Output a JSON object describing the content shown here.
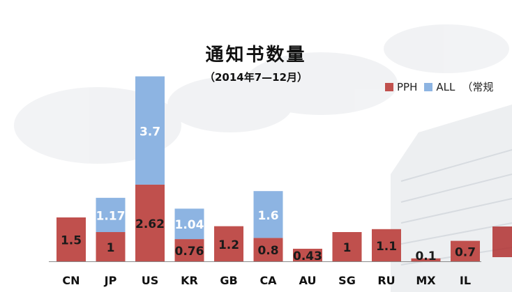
{
  "title": "通知书数量",
  "subtitle": "（2014年7—12月）",
  "legend": {
    "pph_label": "PPH",
    "all_label": "ALL",
    "note": "（常规"
  },
  "colors": {
    "pph": "#c0504d",
    "all": "#8db4e2",
    "label_dark": "#1a1a1a",
    "label_light": "#ffffff"
  },
  "chart_data": {
    "type": "bar",
    "stacked": true,
    "categories": [
      "CN",
      "JP",
      "US",
      "KR",
      "GB",
      "CA",
      "AU",
      "SG",
      "RU",
      "MX",
      "IL"
    ],
    "series": [
      {
        "name": "PPH",
        "values": [
          1.5,
          1,
          2.62,
          0.76,
          1.2,
          0.8,
          0.43,
          1,
          1.1,
          0.1,
          0.7
        ]
      },
      {
        "name": "ALL",
        "values": [
          null,
          1.17,
          3.7,
          1.04,
          null,
          1.6,
          null,
          null,
          null,
          null,
          null
        ]
      }
    ],
    "title": "通知书数量",
    "subtitle": "（2014年7—12月）",
    "legend_position": "top-right"
  }
}
